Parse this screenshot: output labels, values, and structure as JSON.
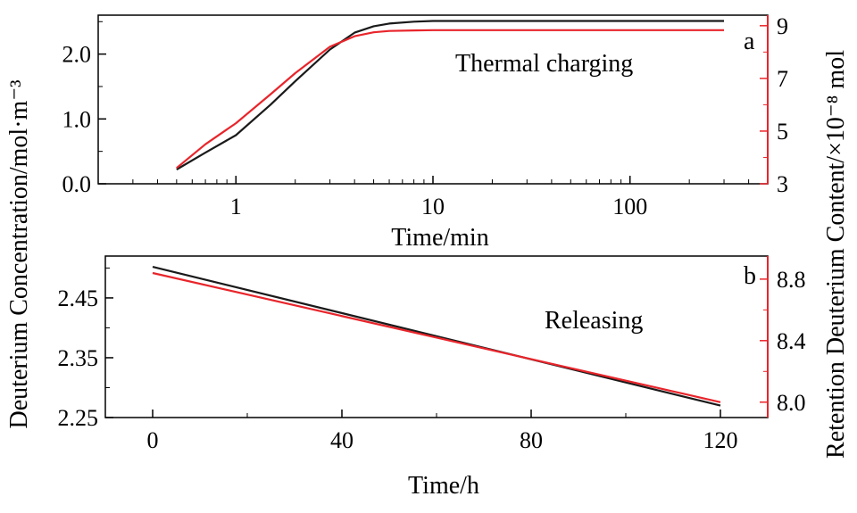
{
  "chart_data": [
    {
      "type": "line",
      "panel_label": "a",
      "annotation": "Thermal charging",
      "xlabel": "Time/min",
      "x_scale": "log",
      "xlim": [
        0.2,
        500
      ],
      "x_ticks": [
        1,
        10,
        100
      ],
      "x_tick_labels": [
        "1",
        "10",
        "100"
      ],
      "ylabel": "Deuterium Concentration/mol·m⁻³",
      "ylim": [
        0,
        2.6
      ],
      "y_ticks": [
        0,
        1,
        2
      ],
      "y_tick_labels": [
        "0.0",
        "1.0",
        "2.0"
      ],
      "y2label": "Retention Deuterium Content/×10⁻⁸ mol",
      "y2lim": [
        3,
        9.4
      ],
      "y2_ticks": [
        3,
        5,
        7,
        9
      ],
      "y2_tick_labels": [
        "3",
        "5",
        "7",
        "9"
      ],
      "y2_color": "#e8252b",
      "series": [
        {
          "axis": "left",
          "color": "#1a1a1a",
          "x": [
            0.5,
            0.7,
            1,
            1.5,
            2,
            3,
            4,
            5,
            6,
            8,
            10,
            20,
            50,
            100,
            300
          ],
          "y": [
            0.22,
            0.48,
            0.75,
            1.22,
            1.58,
            2.07,
            2.33,
            2.43,
            2.47,
            2.5,
            2.51,
            2.51,
            2.51,
            2.51,
            2.51
          ]
        },
        {
          "axis": "right",
          "color": "#e8252b",
          "x": [
            0.5,
            0.7,
            1,
            1.5,
            2,
            3,
            4,
            5,
            6,
            8,
            10,
            20,
            50,
            100,
            300
          ],
          "y": [
            3.6,
            4.5,
            5.3,
            6.4,
            7.2,
            8.2,
            8.6,
            8.75,
            8.8,
            8.82,
            8.83,
            8.83,
            8.83,
            8.83,
            8.83
          ]
        }
      ],
      "grid": false,
      "legend": "none"
    },
    {
      "type": "line",
      "panel_label": "b",
      "annotation": "Releasing",
      "xlabel": "Time/h",
      "xlim": [
        -10,
        130
      ],
      "x_ticks": [
        0,
        40,
        80,
        120
      ],
      "x_tick_labels": [
        "0",
        "40",
        "80",
        "120"
      ],
      "ylim": [
        2.25,
        2.52
      ],
      "y_ticks": [
        2.25,
        2.35,
        2.45
      ],
      "y_tick_labels": [
        "2.25",
        "2.35",
        "2.45"
      ],
      "y2lim": [
        7.9,
        8.95
      ],
      "y2_ticks": [
        8.0,
        8.4,
        8.8
      ],
      "y2_tick_labels": [
        "8.0",
        "8.4",
        "8.8"
      ],
      "y2_color": "#e8252b",
      "series": [
        {
          "axis": "left",
          "color": "#1a1a1a",
          "x": [
            0,
            120
          ],
          "y": [
            2.502,
            2.27
          ]
        },
        {
          "axis": "right",
          "color": "#e8252b",
          "x": [
            0,
            120
          ],
          "y": [
            8.84,
            8.0
          ]
        }
      ],
      "grid": false,
      "legend": "none"
    }
  ]
}
